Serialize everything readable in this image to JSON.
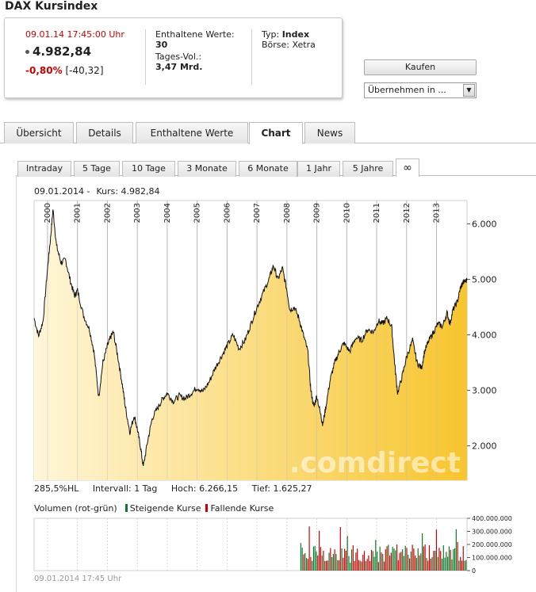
{
  "title": "DAX Kursindex",
  "quote": {
    "datetime": "09.01.14  17:45:00 Uhr",
    "price": "4.982,84",
    "change_pct": "-0,80%",
    "change_abs": "[-40,32]",
    "enthaltene_label": "Enthaltene Werte:",
    "enthaltene_value": "30",
    "tagesvol_label": "Tages-Vol.:",
    "tagesvol_value": "3,47 Mrd.",
    "typ_label": "Typ:",
    "typ_value": "Index",
    "boerse": "Börse: Xetra"
  },
  "actions": {
    "kaufen_label": "Kaufen",
    "uebernehmen_label": "Übernehmen in ..."
  },
  "tabs": [
    "Übersicht",
    "Details",
    "Enthaltene Werte",
    "Chart",
    "News"
  ],
  "active_tab": "Chart",
  "subtabs": [
    "Intraday",
    "5 Tage",
    "10 Tage",
    "3 Monate",
    "6 Monate",
    "1 Jahr",
    "5 Jahre",
    "∞"
  ],
  "active_subtab": "∞",
  "chart_header": {
    "date": "09.01.2014  -",
    "kurs": "Kurs: 4.982,84"
  },
  "stats": {
    "hl": "285,5%HL",
    "intervall": "Intervall: 1 Tag",
    "hoch": "Hoch:  6.266,15",
    "tief": "Tief:  1.625,27"
  },
  "volume_legend": {
    "label": "Volumen (rot-grün)",
    "steigende": "Steigende Kurse",
    "fallende": "Fallende Kurse"
  },
  "watermark": ".comdirect",
  "footer_timestamp": "09.01.2014 17:45 Uhr",
  "colors": {
    "up": "#0a7a2a",
    "down": "#cc0000",
    "area_light": "#fff6d9",
    "area_dark": "#f7c52e"
  },
  "chart_data": [
    {
      "type": "area",
      "x_labels": [
        "2000",
        "2001",
        "2002",
        "2003",
        "2004",
        "2005",
        "2006",
        "2007",
        "2008",
        "2009",
        "2010",
        "2011",
        "2012",
        "2013"
      ],
      "x_range": [
        1999.55,
        2014.02
      ],
      "y_ticks": [
        "6.000",
        "5.000",
        "4.000",
        "3.000",
        "2.000"
      ],
      "y_tick_values": [
        6000,
        5000,
        4000,
        3000,
        2000
      ],
      "ylim": [
        1380,
        6420
      ],
      "grid": "vertical",
      "series": [
        {
          "points": [
            [
              1999.55,
              4300
            ],
            [
              1999.7,
              3980
            ],
            [
              1999.85,
              4250
            ],
            [
              2000.0,
              5200
            ],
            [
              2000.1,
              5750
            ],
            [
              2000.18,
              6266
            ],
            [
              2000.3,
              5600
            ],
            [
              2000.45,
              5300
            ],
            [
              2000.6,
              5350
            ],
            [
              2000.75,
              5000
            ],
            [
              2000.9,
              4700
            ],
            [
              2001.0,
              4800
            ],
            [
              2001.2,
              4350
            ],
            [
              2001.4,
              4100
            ],
            [
              2001.55,
              3700
            ],
            [
              2001.71,
              2880
            ],
            [
              2001.85,
              3500
            ],
            [
              2002.0,
              3800
            ],
            [
              2002.1,
              3950
            ],
            [
              2002.2,
              4050
            ],
            [
              2002.35,
              3600
            ],
            [
              2002.5,
              3100
            ],
            [
              2002.6,
              2700
            ],
            [
              2002.75,
              2250
            ],
            [
              2002.9,
              2550
            ],
            [
              2003.0,
              2300
            ],
            [
              2003.1,
              2000
            ],
            [
              2003.2,
              1625
            ],
            [
              2003.35,
              2100
            ],
            [
              2003.5,
              2500
            ],
            [
              2003.7,
              2700
            ],
            [
              2003.85,
              2850
            ],
            [
              2004.0,
              2950
            ],
            [
              2004.2,
              2800
            ],
            [
              2004.4,
              2900
            ],
            [
              2004.6,
              2850
            ],
            [
              2004.8,
              2950
            ],
            [
              2005.0,
              3050
            ],
            [
              2005.2,
              2980
            ],
            [
              2005.4,
              3150
            ],
            [
              2005.6,
              3400
            ],
            [
              2005.8,
              3600
            ],
            [
              2006.0,
              3800
            ],
            [
              2006.2,
              4000
            ],
            [
              2006.4,
              3750
            ],
            [
              2006.6,
              3900
            ],
            [
              2006.8,
              4200
            ],
            [
              2007.0,
              4500
            ],
            [
              2007.2,
              4750
            ],
            [
              2007.4,
              5000
            ],
            [
              2007.55,
              5250
            ],
            [
              2007.7,
              5000
            ],
            [
              2007.85,
              5200
            ],
            [
              2008.0,
              4800
            ],
            [
              2008.1,
              4450
            ],
            [
              2008.25,
              4500
            ],
            [
              2008.4,
              4300
            ],
            [
              2008.55,
              4000
            ],
            [
              2008.7,
              3700
            ],
            [
              2008.8,
              3000
            ],
            [
              2008.9,
              2700
            ],
            [
              2009.0,
              2900
            ],
            [
              2009.15,
              2500
            ],
            [
              2009.2,
              2390
            ],
            [
              2009.3,
              2700
            ],
            [
              2009.45,
              3200
            ],
            [
              2009.6,
              3500
            ],
            [
              2009.75,
              3700
            ],
            [
              2009.9,
              3850
            ],
            [
              2010.1,
              3700
            ],
            [
              2010.3,
              3950
            ],
            [
              2010.5,
              3900
            ],
            [
              2010.7,
              4100
            ],
            [
              2010.9,
              4050
            ],
            [
              2011.05,
              4250
            ],
            [
              2011.2,
              4200
            ],
            [
              2011.35,
              4300
            ],
            [
              2011.5,
              4150
            ],
            [
              2011.6,
              3500
            ],
            [
              2011.7,
              2950
            ],
            [
              2011.85,
              3250
            ],
            [
              2012.0,
              3600
            ],
            [
              2012.2,
              3900
            ],
            [
              2012.35,
              3500
            ],
            [
              2012.5,
              3400
            ],
            [
              2012.6,
              3700
            ],
            [
              2012.75,
              3900
            ],
            [
              2012.9,
              4050
            ],
            [
              2013.05,
              4200
            ],
            [
              2013.2,
              4150
            ],
            [
              2013.35,
              4400
            ],
            [
              2013.45,
              4200
            ],
            [
              2013.55,
              4450
            ],
            [
              2013.7,
              4600
            ],
            [
              2013.8,
              4850
            ],
            [
              2013.9,
              4950
            ],
            [
              2014.02,
              4983
            ]
          ]
        }
      ]
    },
    {
      "type": "bar",
      "y_ticks": [
        "400.000.000",
        "300.000.000",
        "200.000.000",
        "100.000.000",
        "0"
      ],
      "y_tick_values": [
        400000000,
        300000000,
        200000000,
        100000000,
        0
      ],
      "ylim": [
        0,
        400000000
      ],
      "volume_start_year": 2008.45,
      "bar_count": 118
    }
  ]
}
